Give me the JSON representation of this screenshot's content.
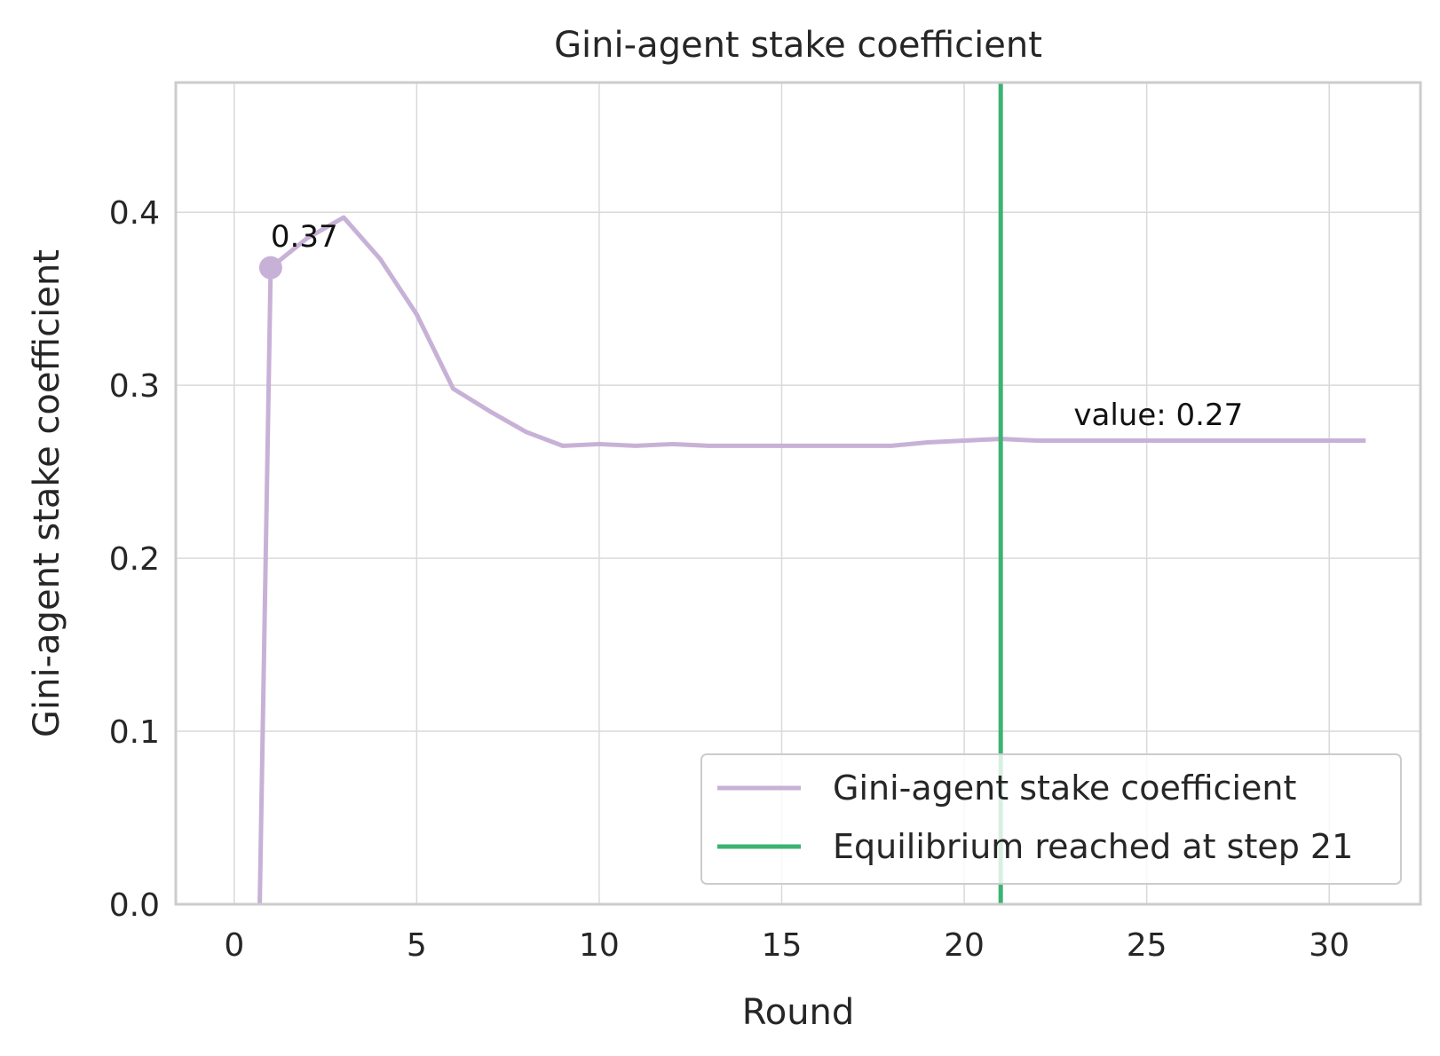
{
  "chart_data": {
    "type": "line",
    "title": "Gini-agent stake coefficient",
    "xlabel": "Round",
    "ylabel": "Gini-agent stake coefficient",
    "xlim": [
      -1.6,
      32.5
    ],
    "ylim": [
      0.0,
      0.475
    ],
    "xticks": [
      0,
      5,
      10,
      15,
      20,
      25,
      30
    ],
    "yticks": [
      0.0,
      0.1,
      0.2,
      0.3,
      0.4
    ],
    "xtick_labels": [
      "0",
      "5",
      "10",
      "15",
      "20",
      "25",
      "30"
    ],
    "ytick_labels": [
      "0.0",
      "0.1",
      "0.2",
      "0.3",
      "0.4"
    ],
    "grid": true,
    "legend_position": "bottom-right",
    "series": [
      {
        "name": "Gini-agent stake coefficient",
        "color": "#c8b1d6",
        "x": [
          0.7,
          1,
          2,
          3,
          4,
          5,
          6,
          7,
          8,
          9,
          10,
          11,
          12,
          13,
          14,
          15,
          16,
          17,
          18,
          19,
          20,
          21,
          22,
          23,
          24,
          25,
          26,
          27,
          28,
          29,
          30,
          31
        ],
        "values": [
          0.0,
          0.368,
          0.385,
          0.397,
          0.373,
          0.341,
          0.298,
          0.285,
          0.273,
          0.265,
          0.266,
          0.265,
          0.266,
          0.265,
          0.265,
          0.265,
          0.265,
          0.265,
          0.265,
          0.267,
          0.268,
          0.269,
          0.268,
          0.268,
          0.268,
          0.268,
          0.268,
          0.268,
          0.268,
          0.268,
          0.268,
          0.268
        ]
      }
    ],
    "vlines": [
      {
        "name": "Equilibrium reached at step 21",
        "x": 21,
        "color": "#3cb371"
      }
    ],
    "highlight_point": {
      "x": 1,
      "y": 0.368,
      "color": "#c8b1d6"
    },
    "annotations": [
      {
        "text": "0.37",
        "x": 1.0,
        "y": 0.38
      },
      {
        "text": "value: 0.27",
        "x": 23.0,
        "y": 0.277
      }
    ]
  }
}
